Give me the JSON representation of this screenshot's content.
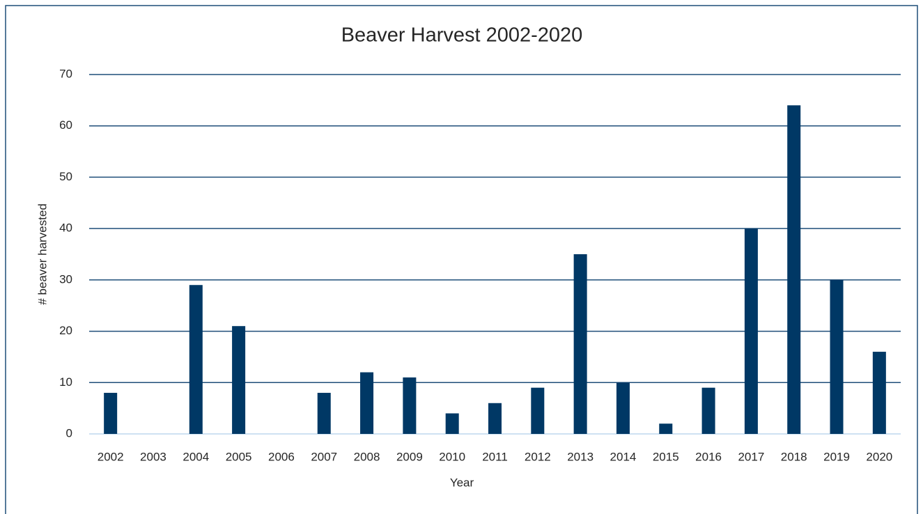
{
  "chart_data": {
    "type": "bar",
    "title": "Beaver Harvest 2002-2020",
    "x_label": "Year",
    "y_label": "# beaver harvested",
    "categories": [
      "2002",
      "2003",
      "2004",
      "2005",
      "2006",
      "2007",
      "2008",
      "2009",
      "2010",
      "2011",
      "2012",
      "2013",
      "2014",
      "2015",
      "2016",
      "2017",
      "2018",
      "2019",
      "2020"
    ],
    "values": [
      8,
      0,
      29,
      21,
      0,
      8,
      12,
      11,
      4,
      6,
      9,
      35,
      10,
      2,
      9,
      40,
      64,
      30,
      16
    ],
    "color": "#003865",
    "ylim": [
      0,
      70
    ],
    "yticks": [
      0,
      10,
      20,
      30,
      40,
      50,
      60,
      70
    ],
    "grid": true
  }
}
